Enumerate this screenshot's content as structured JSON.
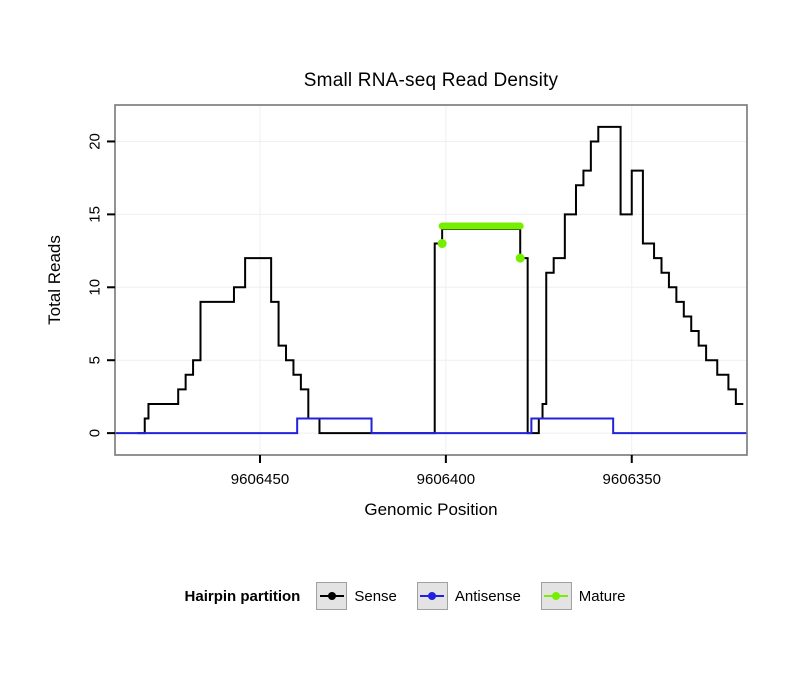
{
  "title": "Small RNA-seq Read Density",
  "legend": {
    "title": "Hairpin partition",
    "items": [
      {
        "label": "Sense",
        "color": "#000000"
      },
      {
        "label": "Antisense",
        "color": "#2222dd"
      },
      {
        "label": "Mature",
        "color": "#76ee00"
      }
    ]
  },
  "chart_data": {
    "type": "line",
    "title": "Small RNA-seq Read Density",
    "xlabel": "Genomic Position",
    "ylabel": "Total Reads",
    "x_axis_reversed": true,
    "xlim": [
      9606489,
      9606319
    ],
    "ylim": [
      0,
      21
    ],
    "x_ticks": [
      9606450,
      9606400,
      9606350
    ],
    "y_ticks": [
      0,
      5,
      10,
      15,
      20
    ],
    "grid": "major gridlines, very light gray, panel with gray border",
    "series": [
      {
        "name": "Sense",
        "color": "#000000",
        "style": "step",
        "points": [
          [
            9606483,
            0
          ],
          [
            9606481,
            1
          ],
          [
            9606480,
            2
          ],
          [
            9606472,
            3
          ],
          [
            9606470,
            4
          ],
          [
            9606468,
            5
          ],
          [
            9606466,
            9
          ],
          [
            9606457,
            10
          ],
          [
            9606454,
            12
          ],
          [
            9606447,
            9
          ],
          [
            9606445,
            6
          ],
          [
            9606443,
            5
          ],
          [
            9606441,
            4
          ],
          [
            9606439,
            3
          ],
          [
            9606437,
            1
          ],
          [
            9606434,
            0
          ],
          [
            9606403,
            13
          ],
          [
            9606401,
            14
          ],
          [
            9606380,
            12
          ],
          [
            9606378,
            0
          ],
          [
            9606375,
            1
          ],
          [
            9606374,
            2
          ],
          [
            9606373,
            11
          ],
          [
            9606371,
            12
          ],
          [
            9606368,
            15
          ],
          [
            9606365,
            17
          ],
          [
            9606363,
            18
          ],
          [
            9606361,
            20
          ],
          [
            9606359,
            21
          ],
          [
            9606353,
            15
          ],
          [
            9606350,
            18
          ],
          [
            9606347,
            13
          ],
          [
            9606344,
            12
          ],
          [
            9606342,
            11
          ],
          [
            9606340,
            10
          ],
          [
            9606338,
            9
          ],
          [
            9606336,
            8
          ],
          [
            9606334,
            7
          ],
          [
            9606332,
            6
          ],
          [
            9606330,
            5
          ],
          [
            9606327,
            4
          ],
          [
            9606324,
            3
          ],
          [
            9606322,
            2
          ],
          [
            9606320,
            2
          ]
        ]
      },
      {
        "name": "Antisense",
        "color": "#2222dd",
        "style": "step",
        "points": [
          [
            9606489,
            0
          ],
          [
            9606440,
            1
          ],
          [
            9606420,
            0
          ],
          [
            9606377,
            1
          ],
          [
            9606355,
            0
          ],
          [
            9606319,
            0
          ]
        ]
      },
      {
        "name": "Mature",
        "color": "#76ee00",
        "style": "segment-with-points",
        "segment": {
          "x_start": 9606401,
          "x_end": 9606380,
          "y": 14.2,
          "stroke_width": 7
        },
        "points": [
          [
            9606401,
            13
          ],
          [
            9606380,
            12
          ]
        ]
      }
    ]
  }
}
